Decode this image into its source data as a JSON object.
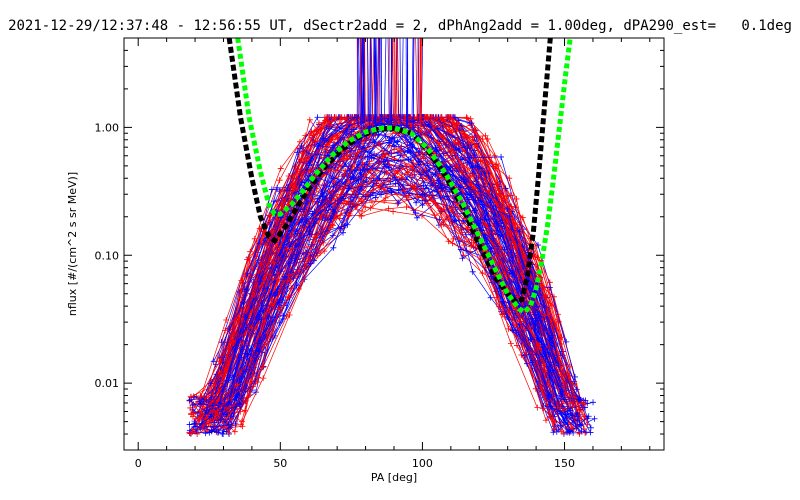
{
  "chart_data": {
    "type": "line",
    "title": "2021-12-29/12:37:48 - 12:56:55 UT, dSectr2add = 2, dPhAng2add = 1.00deg, dPA290_est=   0.1deg",
    "xlabel": "PA [deg]",
    "ylabel": "nflux [#/(cm^2 s sr MeV)]",
    "xlim": [
      -5,
      185
    ],
    "ylim": [
      0.003,
      5
    ],
    "yscale": "log",
    "x_ticks": [
      0,
      50,
      100,
      150
    ],
    "y_ticks": [
      0.01,
      0.1,
      1.0
    ],
    "x_tick_labels": [
      "0",
      "50",
      "100",
      "150"
    ],
    "y_tick_labels": [
      "0.01",
      "0.10",
      "1.00"
    ],
    "grid": false,
    "colors": {
      "series_red": "#ff0000",
      "series_blue": "#0000ff",
      "fit_black": "#000000",
      "fit_green": "#00ff00"
    },
    "series": [
      {
        "style": "fit-dashed",
        "color": "#000000",
        "x": [
          32,
          36,
          40,
          43,
          46,
          48,
          52,
          56,
          60,
          66,
          72,
          78,
          84,
          90,
          96,
          102,
          108,
          114,
          120,
          126,
          130,
          133,
          135,
          137,
          139,
          141,
          143,
          145
        ],
        "y": [
          5.0,
          1.2,
          0.4,
          0.2,
          0.14,
          0.13,
          0.17,
          0.24,
          0.33,
          0.5,
          0.68,
          0.85,
          0.96,
          0.98,
          0.9,
          0.66,
          0.42,
          0.24,
          0.12,
          0.065,
          0.05,
          0.043,
          0.045,
          0.07,
          0.15,
          0.45,
          1.5,
          5.0
        ]
      },
      {
        "style": "fit-dotted",
        "color": "#00ff00",
        "x": [
          35,
          39,
          43,
          46,
          48,
          50,
          54,
          58,
          62,
          68,
          74,
          80,
          86,
          90,
          96,
          102,
          108,
          114,
          120,
          126,
          130,
          134,
          136,
          138,
          140,
          142,
          144,
          146,
          148,
          150,
          152
        ],
        "y": [
          5.0,
          1.2,
          0.45,
          0.25,
          0.21,
          0.21,
          0.25,
          0.32,
          0.42,
          0.6,
          0.78,
          0.92,
          0.99,
          0.99,
          0.9,
          0.68,
          0.44,
          0.26,
          0.14,
          0.075,
          0.05,
          0.038,
          0.036,
          0.04,
          0.055,
          0.09,
          0.17,
          0.38,
          0.9,
          2.2,
          5.0
        ]
      }
    ]
  }
}
